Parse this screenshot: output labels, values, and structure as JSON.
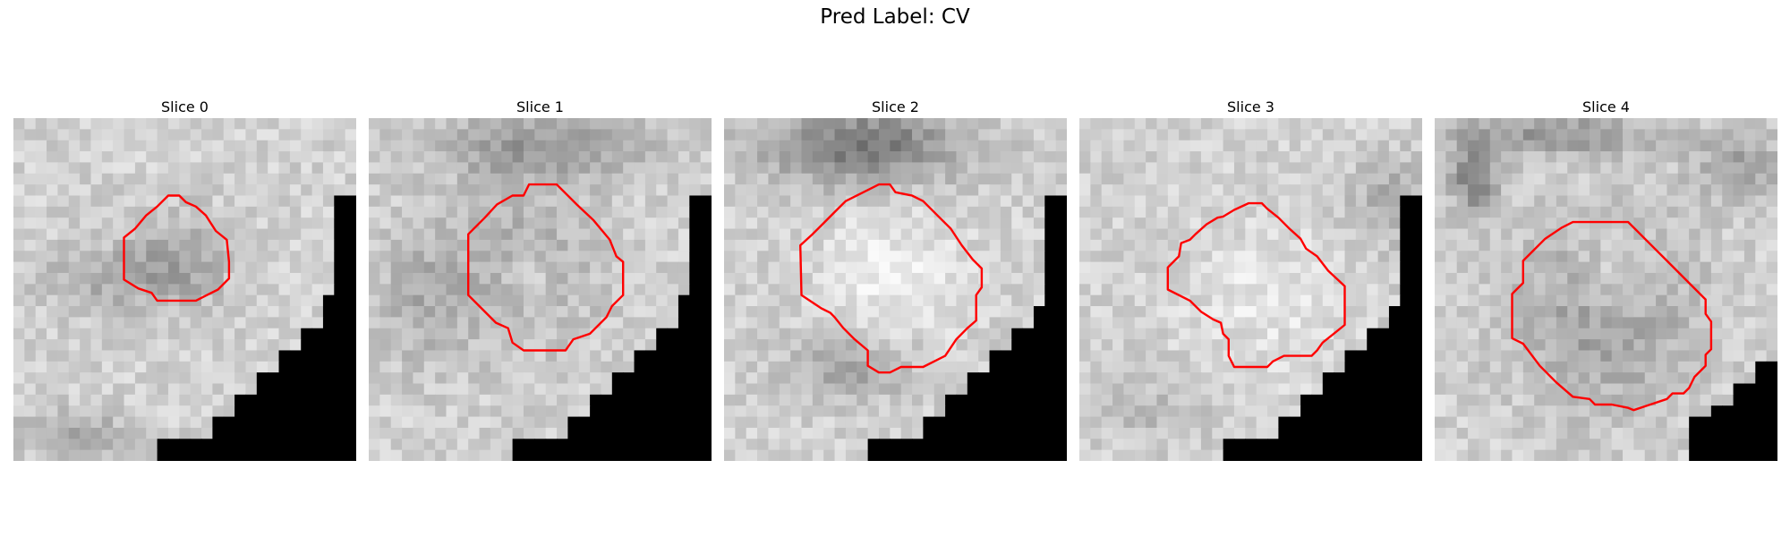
{
  "figure": {
    "suptitle": "Pred Label: CV",
    "contour_color": "#ff0000"
  },
  "panels": [
    {
      "title": "Slice 0"
    },
    {
      "title": "Slice 1"
    },
    {
      "title": "Slice 2"
    },
    {
      "title": "Slice 3"
    },
    {
      "title": "Slice 4"
    }
  ]
}
